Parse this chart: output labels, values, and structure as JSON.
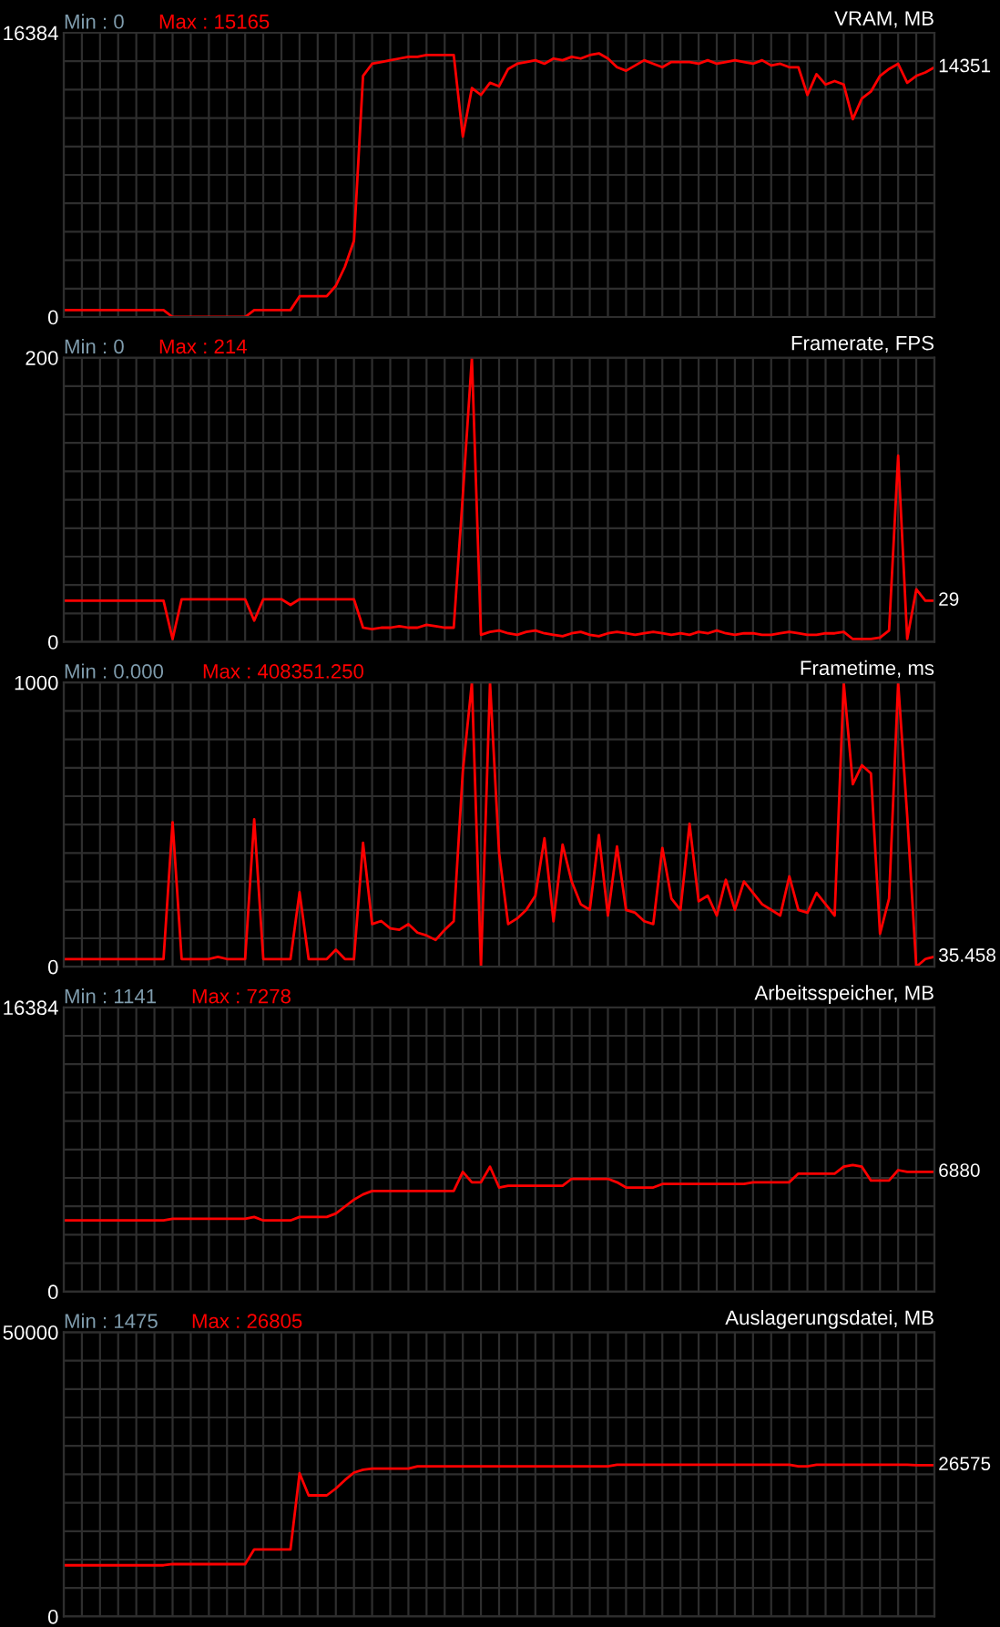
{
  "chart_data": [
    {
      "type": "line",
      "title": "VRAM, MB",
      "tick_labels": "y",
      "grid": true,
      "categories": [
        null,
        null,
        null,
        null,
        null,
        null,
        null,
        null,
        null,
        null,
        null,
        null,
        null,
        null,
        null,
        null,
        null,
        null,
        null,
        null,
        null,
        null,
        null,
        null,
        null,
        null,
        null,
        null,
        null,
        null,
        null,
        null,
        null,
        null,
        null,
        null,
        null,
        null,
        null,
        null,
        null,
        null,
        null,
        null,
        null,
        null,
        null,
        null,
        null,
        null,
        null,
        null,
        null,
        null,
        null,
        null,
        null,
        null,
        null,
        null,
        null,
        null,
        null,
        null,
        null,
        null,
        null,
        null,
        null,
        null,
        null,
        null,
        null,
        null,
        null,
        null,
        null,
        null,
        null,
        null,
        null,
        null,
        null,
        null,
        null,
        null,
        null,
        null,
        null,
        null,
        null,
        null,
        null,
        null,
        null,
        null,
        null
      ],
      "series": [
        {
          "color": "#ff0000",
          "values": [
            400,
            400,
            400,
            400,
            400,
            400,
            400,
            400,
            400,
            400,
            400,
            400,
            0,
            0,
            0,
            0,
            0,
            0,
            0,
            0,
            0,
            400,
            400,
            400,
            400,
            400,
            1200,
            1200,
            1200,
            1200,
            1800,
            2900,
            4400,
            13900,
            14600,
            14700,
            14800,
            14900,
            15000,
            15000,
            15100,
            15100,
            15100,
            15100,
            10400,
            13200,
            12800,
            13500,
            13300,
            14300,
            14600,
            14700,
            14800,
            14600,
            14900,
            14800,
            15000,
            14900,
            15100,
            15200,
            14900,
            14400,
            14200,
            14500,
            14800,
            14600,
            14400,
            14700,
            14700,
            14700,
            14600,
            14800,
            14600,
            14700,
            14800,
            14700,
            14600,
            14800,
            14500,
            14600,
            14400,
            14400,
            12800,
            14000,
            13400,
            13600,
            13400,
            11400,
            12600,
            13000,
            13900,
            14300,
            14600,
            13500,
            13900,
            14100,
            14400
          ]
        }
      ],
      "ylim": [
        0,
        16384
      ],
      "yticks": [
        0,
        {
          "value": 1638.4,
          "label": null
        },
        {
          "value": 3276.8,
          "label": null
        },
        {
          "value": 4915.2,
          "label": null
        },
        {
          "value": 6553.6,
          "label": null
        },
        {
          "value": 8192,
          "label": null
        },
        {
          "value": 9830.4,
          "label": null
        },
        {
          "value": 11468.8,
          "label": null
        },
        {
          "value": 13107.2,
          "label": null
        },
        {
          "value": 14745.6,
          "label": null
        },
        16384
      ],
      "annotations": [
        "Min : 0",
        "Max : 15165",
        "14351"
      ]
    },
    {
      "type": "line",
      "title": "Framerate, FPS",
      "tick_labels": "y",
      "grid": true,
      "categories": [
        null,
        null,
        null,
        null,
        null,
        null,
        null,
        null,
        null,
        null,
        null,
        null,
        null,
        null,
        null,
        null,
        null,
        null,
        null,
        null,
        null,
        null,
        null,
        null,
        null,
        null,
        null,
        null,
        null,
        null,
        null,
        null,
        null,
        null,
        null,
        null,
        null,
        null,
        null,
        null,
        null,
        null,
        null,
        null,
        null,
        null,
        null,
        null,
        null,
        null,
        null,
        null,
        null,
        null,
        null,
        null,
        null,
        null,
        null,
        null,
        null,
        null,
        null,
        null,
        null,
        null,
        null,
        null,
        null,
        null,
        null,
        null,
        null,
        null,
        null,
        null,
        null,
        null,
        null,
        null,
        null,
        null,
        null,
        null,
        null,
        null,
        null,
        null,
        null,
        null,
        null,
        null,
        null,
        null,
        null,
        null,
        null
      ],
      "series": [
        {
          "color": "#ff0000",
          "values": [
            29,
            29,
            29,
            29,
            29,
            29,
            29,
            29,
            29,
            29,
            29,
            29,
            2,
            30,
            30,
            30,
            30,
            30,
            30,
            30,
            30,
            15,
            30,
            30,
            30,
            26,
            30,
            30,
            30,
            30,
            30,
            30,
            30,
            10,
            9,
            10,
            10,
            11,
            10,
            10,
            12,
            11,
            10,
            10,
            103,
            200,
            5,
            7,
            8,
            6,
            5,
            7,
            8,
            6,
            5,
            4,
            6,
            7,
            5,
            4,
            6,
            7,
            6,
            5,
            6,
            7,
            6,
            5,
            6,
            5,
            7,
            6,
            8,
            6,
            5,
            6,
            6,
            5,
            5,
            6,
            7,
            6,
            5,
            5,
            6,
            6,
            7,
            2,
            2,
            2,
            3,
            8,
            131,
            2,
            37,
            29,
            29
          ]
        }
      ],
      "ylim": [
        0,
        200
      ],
      "yticks": [
        0,
        {
          "value": 20,
          "label": null
        },
        {
          "value": 40,
          "label": null
        },
        {
          "value": 60,
          "label": null
        },
        {
          "value": 80,
          "label": null
        },
        {
          "value": 100,
          "label": null
        },
        {
          "value": 120,
          "label": null
        },
        {
          "value": 140,
          "label": null
        },
        {
          "value": 160,
          "label": null
        },
        {
          "value": 180,
          "label": null
        },
        200
      ],
      "annotations": [
        "Min : 0",
        "Max : 214",
        "29"
      ]
    },
    {
      "type": "line",
      "title": "Frametime, ms",
      "tick_labels": "y",
      "grid": true,
      "categories": [
        null,
        null,
        null,
        null,
        null,
        null,
        null,
        null,
        null,
        null,
        null,
        null,
        null,
        null,
        null,
        null,
        null,
        null,
        null,
        null,
        null,
        null,
        null,
        null,
        null,
        null,
        null,
        null,
        null,
        null,
        null,
        null,
        null,
        null,
        null,
        null,
        null,
        null,
        null,
        null,
        null,
        null,
        null,
        null,
        null,
        null,
        null,
        null,
        null,
        null,
        null,
        null,
        null,
        null,
        null,
        null,
        null,
        null,
        null,
        null,
        null,
        null,
        null,
        null,
        null,
        null,
        null,
        null,
        null,
        null,
        null,
        null,
        null,
        null,
        null,
        null,
        null,
        null,
        null,
        null,
        null,
        null,
        null,
        null,
        null,
        null,
        null,
        null,
        null,
        null,
        null,
        null,
        null,
        null,
        null,
        null,
        null
      ],
      "series": [
        {
          "color": "#ff0000",
          "values": [
            27,
            27,
            27,
            27,
            27,
            27,
            27,
            27,
            27,
            27,
            27,
            27,
            508,
            27,
            27,
            27,
            27,
            35,
            27,
            27,
            27,
            519,
            27,
            27,
            27,
            27,
            262,
            27,
            27,
            27,
            60,
            27,
            27,
            436,
            150,
            161,
            135,
            130,
            150,
            120,
            110,
            94,
            130,
            160,
            687,
            1000,
            0,
            1000,
            400,
            150,
            170,
            200,
            250,
            452,
            160,
            430,
            300,
            220,
            200,
            463,
            180,
            423,
            200,
            190,
            160,
            150,
            418,
            240,
            200,
            503,
            230,
            250,
            180,
            306,
            200,
            300,
            260,
            220,
            200,
            180,
            318,
            200,
            190,
            260,
            220,
            180,
            1000,
            642,
            709,
            680,
            116,
            240,
            1000,
            530,
            0,
            27,
            35
          ]
        }
      ],
      "ylim": [
        0,
        1000
      ],
      "yticks": [
        0,
        {
          "value": 100,
          "label": null
        },
        {
          "value": 200,
          "label": null
        },
        {
          "value": 300,
          "label": null
        },
        {
          "value": 400,
          "label": null
        },
        {
          "value": 500,
          "label": null
        },
        {
          "value": 600,
          "label": null
        },
        {
          "value": 700,
          "label": null
        },
        {
          "value": 800,
          "label": null
        },
        {
          "value": 900,
          "label": null
        },
        1000
      ],
      "annotations": [
        "Min : 0.000",
        "Max : 408351.250",
        "35.458"
      ]
    },
    {
      "type": "line",
      "title": "Arbeitsspeicher, MB",
      "tick_labels": "y",
      "grid": true,
      "categories": [
        null,
        null,
        null,
        null,
        null,
        null,
        null,
        null,
        null,
        null,
        null,
        null,
        null,
        null,
        null,
        null,
        null,
        null,
        null,
        null,
        null,
        null,
        null,
        null,
        null,
        null,
        null,
        null,
        null,
        null,
        null,
        null,
        null,
        null,
        null,
        null,
        null,
        null,
        null,
        null,
        null,
        null,
        null,
        null,
        null,
        null,
        null,
        null,
        null,
        null,
        null,
        null,
        null,
        null,
        null,
        null,
        null,
        null,
        null,
        null,
        null,
        null,
        null,
        null,
        null,
        null,
        null,
        null,
        null,
        null,
        null,
        null,
        null,
        null,
        null,
        null,
        null,
        null,
        null,
        null,
        null,
        null,
        null,
        null,
        null,
        null,
        null,
        null,
        null,
        null,
        null,
        null,
        null,
        null,
        null,
        null,
        null
      ],
      "series": [
        {
          "color": "#ff0000",
          "values": [
            4100,
            4100,
            4100,
            4100,
            4100,
            4100,
            4100,
            4100,
            4100,
            4100,
            4100,
            4100,
            4200,
            4200,
            4200,
            4200,
            4200,
            4200,
            4200,
            4200,
            4200,
            4300,
            4100,
            4100,
            4100,
            4100,
            4300,
            4300,
            4300,
            4300,
            4500,
            4900,
            5300,
            5600,
            5800,
            5800,
            5800,
            5800,
            5800,
            5800,
            5800,
            5800,
            5800,
            5800,
            6900,
            6300,
            6300,
            7200,
            6000,
            6100,
            6100,
            6100,
            6100,
            6100,
            6100,
            6100,
            6500,
            6500,
            6500,
            6500,
            6500,
            6300,
            6000,
            6000,
            6000,
            6000,
            6200,
            6200,
            6200,
            6200,
            6200,
            6200,
            6200,
            6200,
            6200,
            6200,
            6300,
            6300,
            6300,
            6300,
            6300,
            6800,
            6800,
            6800,
            6800,
            6800,
            7200,
            7300,
            7200,
            6400,
            6400,
            6400,
            7000,
            6900,
            6900,
            6900,
            6900
          ]
        }
      ],
      "ylim": [
        0,
        16384
      ],
      "yticks": [
        0,
        {
          "value": 1638.4,
          "label": null
        },
        {
          "value": 3276.8,
          "label": null
        },
        {
          "value": 4915.2,
          "label": null
        },
        {
          "value": 6553.6,
          "label": null
        },
        {
          "value": 8192,
          "label": null
        },
        {
          "value": 9830.4,
          "label": null
        },
        {
          "value": 11468.8,
          "label": null
        },
        {
          "value": 13107.2,
          "label": null
        },
        {
          "value": 14745.6,
          "label": null
        },
        16384
      ],
      "annotations": [
        "Min : 1141",
        "Max : 7278",
        "6880"
      ]
    },
    {
      "type": "line",
      "title": "Auslagerungsdatei, MB",
      "tick_labels": "y",
      "grid": true,
      "categories": [
        null,
        null,
        null,
        null,
        null,
        null,
        null,
        null,
        null,
        null,
        null,
        null,
        null,
        null,
        null,
        null,
        null,
        null,
        null,
        null,
        null,
        null,
        null,
        null,
        null,
        null,
        null,
        null,
        null,
        null,
        null,
        null,
        null,
        null,
        null,
        null,
        null,
        null,
        null,
        null,
        null,
        null,
        null,
        null,
        null,
        null,
        null,
        null,
        null,
        null,
        null,
        null,
        null,
        null,
        null,
        null,
        null,
        null,
        null,
        null,
        null,
        null,
        null,
        null,
        null,
        null,
        null,
        null,
        null,
        null,
        null,
        null,
        null,
        null,
        null,
        null,
        null,
        null,
        null,
        null,
        null,
        null,
        null,
        null,
        null,
        null,
        null,
        null,
        null,
        null,
        null,
        null,
        null,
        null,
        null,
        null,
        null
      ],
      "series": [
        {
          "color": "#ff0000",
          "values": [
            9000,
            9000,
            9000,
            9000,
            9000,
            9000,
            9000,
            9000,
            9000,
            9000,
            9000,
            9000,
            9200,
            9200,
            9200,
            9200,
            9200,
            9200,
            9200,
            9200,
            9200,
            11800,
            11800,
            11800,
            11800,
            11800,
            25200,
            21300,
            21300,
            21300,
            22500,
            24000,
            25300,
            25800,
            26000,
            26000,
            26000,
            26000,
            26000,
            26400,
            26400,
            26400,
            26400,
            26400,
            26400,
            26400,
            26400,
            26400,
            26400,
            26400,
            26400,
            26400,
            26400,
            26400,
            26400,
            26400,
            26400,
            26400,
            26400,
            26400,
            26400,
            26700,
            26700,
            26700,
            26700,
            26700,
            26700,
            26700,
            26700,
            26700,
            26700,
            26700,
            26700,
            26700,
            26700,
            26700,
            26700,
            26700,
            26700,
            26700,
            26700,
            26400,
            26400,
            26700,
            26700,
            26700,
            26700,
            26700,
            26700,
            26700,
            26700,
            26700,
            26700,
            26700,
            26600,
            26600,
            26600
          ]
        }
      ],
      "ylim": [
        0,
        50000
      ],
      "yticks": [
        0,
        {
          "value": 5000,
          "label": null
        },
        {
          "value": 10000,
          "label": null
        },
        {
          "value": 15000,
          "label": null
        },
        {
          "value": 20000,
          "label": null
        },
        {
          "value": 25000,
          "label": null
        },
        {
          "value": 30000,
          "label": null
        },
        {
          "value": 35000,
          "label": null
        },
        {
          "value": 40000,
          "label": null
        },
        {
          "value": 45000,
          "label": null
        },
        50000
      ],
      "annotations": [
        "Min : 1475",
        "Max : 26805",
        "26575"
      ]
    }
  ]
}
